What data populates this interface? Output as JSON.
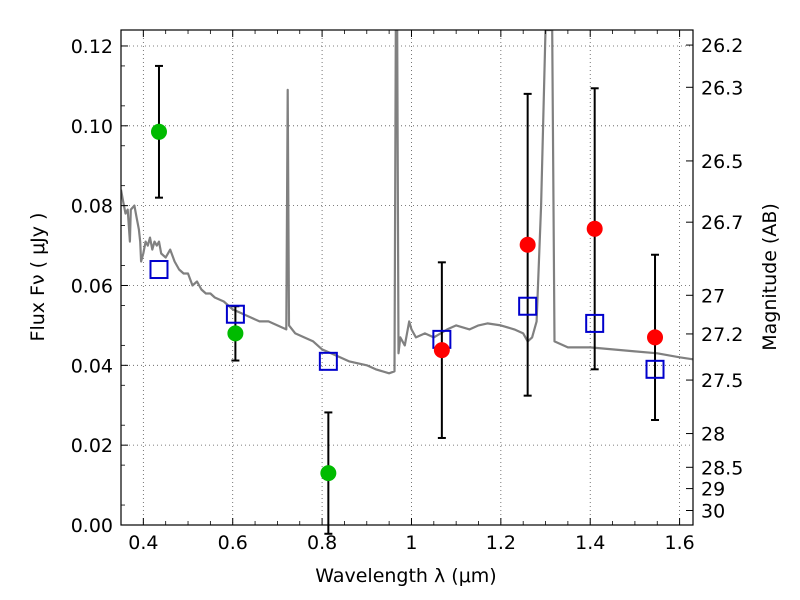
{
  "chart_data": {
    "type": "scatter",
    "xlabel": "Wavelength  λ (μm)",
    "ylabel": "Flux  Fν  ( μJy )",
    "y2label": "Magnitude (AB)",
    "xlim": [
      0.35,
      1.63
    ],
    "ylim": [
      0.0,
      0.124
    ],
    "grid": true,
    "x_ticks": [
      0.4,
      0.6,
      0.8,
      1.0,
      1.2,
      1.4,
      1.6
    ],
    "x_tick_labels": [
      "0.4",
      "0.6",
      "0.8",
      "1",
      "1.2",
      "1.4",
      "1.6"
    ],
    "y_ticks": [
      0.0,
      0.02,
      0.04,
      0.06,
      0.08,
      0.1,
      0.12
    ],
    "y_tick_labels": [
      "0.00",
      "0.02",
      "0.04",
      "0.06",
      "0.08",
      "0.10",
      "0.12"
    ],
    "mag_ticks": [
      26.2,
      26.3,
      26.5,
      26.7,
      27,
      27.2,
      27.5,
      28,
      28.5,
      29,
      30
    ],
    "mag_tick_labels": [
      "26.2",
      "26.3",
      "26.5",
      "26.7",
      "27",
      "27.2",
      "27.5",
      "28",
      "28.5",
      "29",
      "30"
    ],
    "series": [
      {
        "marker": "circle",
        "color": "#00bb00",
        "points": [
          {
            "x": 0.435,
            "y": 0.0985,
            "err": 0.0165
          },
          {
            "x": 0.606,
            "y": 0.048,
            "err": 0.0068
          },
          {
            "x": 0.814,
            "y": 0.013,
            "err": 0.0152
          }
        ]
      },
      {
        "marker": "circle",
        "color": "#ff0000",
        "points": [
          {
            "x": 1.068,
            "y": 0.0438,
            "err": 0.022
          },
          {
            "x": 1.26,
            "y": 0.0702,
            "err": 0.0378
          },
          {
            "x": 1.41,
            "y": 0.0742,
            "err": 0.0352
          },
          {
            "x": 1.545,
            "y": 0.047,
            "err": 0.0207
          }
        ]
      },
      {
        "marker": "square-open",
        "color": "#0000cc",
        "points": [
          {
            "x": 0.435,
            "y": 0.064
          },
          {
            "x": 0.606,
            "y": 0.0528
          },
          {
            "x": 0.814,
            "y": 0.041
          },
          {
            "x": 1.068,
            "y": 0.0465
          },
          {
            "x": 1.26,
            "y": 0.0548
          },
          {
            "x": 1.41,
            "y": 0.0505
          },
          {
            "x": 1.545,
            "y": 0.039
          }
        ]
      },
      {
        "marker": "line",
        "color": "#808080",
        "points": [
          [
            0.35,
            0.084
          ],
          [
            0.355,
            0.081
          ],
          [
            0.36,
            0.078
          ],
          [
            0.365,
            0.079
          ],
          [
            0.37,
            0.071
          ],
          [
            0.372,
            0.079
          ],
          [
            0.38,
            0.08
          ],
          [
            0.385,
            0.077
          ],
          [
            0.39,
            0.074
          ],
          [
            0.393,
            0.071
          ],
          [
            0.395,
            0.066
          ],
          [
            0.4,
            0.068
          ],
          [
            0.405,
            0.071
          ],
          [
            0.41,
            0.07
          ],
          [
            0.415,
            0.072
          ],
          [
            0.42,
            0.069
          ],
          [
            0.425,
            0.071
          ],
          [
            0.43,
            0.07
          ],
          [
            0.435,
            0.071
          ],
          [
            0.44,
            0.068
          ],
          [
            0.45,
            0.067
          ],
          [
            0.46,
            0.069
          ],
          [
            0.47,
            0.066
          ],
          [
            0.48,
            0.064
          ],
          [
            0.49,
            0.063
          ],
          [
            0.5,
            0.063
          ],
          [
            0.51,
            0.06
          ],
          [
            0.52,
            0.061
          ],
          [
            0.53,
            0.059
          ],
          [
            0.54,
            0.058
          ],
          [
            0.55,
            0.058
          ],
          [
            0.56,
            0.057
          ],
          [
            0.58,
            0.056
          ],
          [
            0.6,
            0.054
          ],
          [
            0.62,
            0.053
          ],
          [
            0.64,
            0.052
          ],
          [
            0.66,
            0.051
          ],
          [
            0.68,
            0.051
          ],
          [
            0.7,
            0.05
          ],
          [
            0.72,
            0.049
          ],
          [
            0.723,
            0.109
          ],
          [
            0.726,
            0.05
          ],
          [
            0.74,
            0.048
          ],
          [
            0.76,
            0.047
          ],
          [
            0.78,
            0.046
          ],
          [
            0.8,
            0.044
          ],
          [
            0.82,
            0.043
          ],
          [
            0.84,
            0.042
          ],
          [
            0.86,
            0.041
          ],
          [
            0.88,
            0.0405
          ],
          [
            0.9,
            0.04
          ],
          [
            0.92,
            0.039
          ],
          [
            0.95,
            0.038
          ],
          [
            0.962,
            0.0385
          ],
          [
            0.965,
            0.124
          ],
          [
            0.968,
            0.124
          ],
          [
            0.971,
            0.043
          ],
          [
            0.975,
            0.047
          ],
          [
            0.985,
            0.045
          ],
          [
            0.995,
            0.051
          ],
          [
            1.0,
            0.049
          ],
          [
            1.01,
            0.047
          ],
          [
            1.03,
            0.048
          ],
          [
            1.05,
            0.047
          ],
          [
            1.08,
            0.049
          ],
          [
            1.1,
            0.05
          ],
          [
            1.13,
            0.049
          ],
          [
            1.15,
            0.05
          ],
          [
            1.17,
            0.0505
          ],
          [
            1.2,
            0.05
          ],
          [
            1.23,
            0.049
          ],
          [
            1.25,
            0.048
          ],
          [
            1.26,
            0.046
          ],
          [
            1.27,
            0.047
          ],
          [
            1.28,
            0.051
          ],
          [
            1.29,
            0.08
          ],
          [
            1.3,
            0.124
          ],
          [
            1.315,
            0.124
          ],
          [
            1.32,
            0.046
          ],
          [
            1.35,
            0.0445
          ],
          [
            1.4,
            0.0445
          ],
          [
            1.45,
            0.044
          ],
          [
            1.5,
            0.0435
          ],
          [
            1.55,
            0.043
          ],
          [
            1.6,
            0.042
          ],
          [
            1.63,
            0.0415
          ]
        ]
      }
    ]
  }
}
